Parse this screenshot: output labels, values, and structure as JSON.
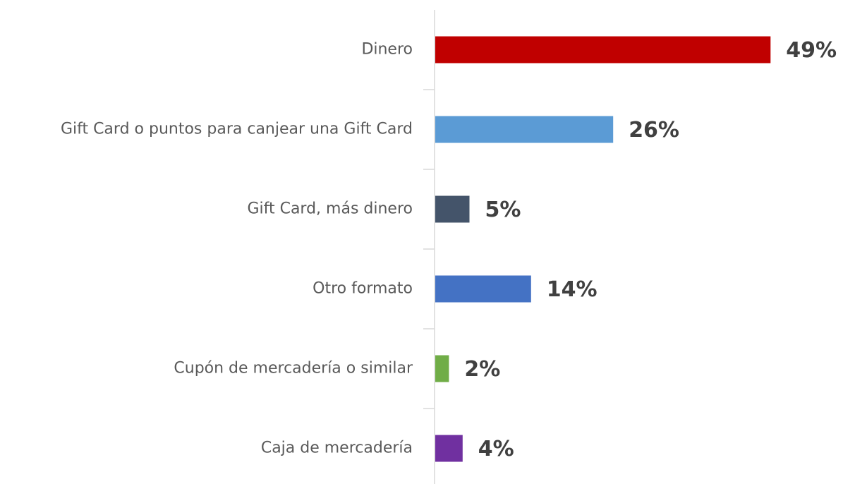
{
  "chart_data": {
    "type": "bar",
    "orientation": "horizontal",
    "categories": [
      "Dinero",
      "Gift Card o puntos para canjear una Gift Card",
      "Gift Card, más dinero",
      "Otro formato",
      "Cupón de mercadería o similar",
      "Caja de mercadería"
    ],
    "values": [
      49,
      26,
      5,
      14,
      2,
      4
    ],
    "value_labels": [
      "49%",
      "26%",
      "5%",
      "14%",
      "2%",
      "4%"
    ],
    "colors": [
      "#c00000",
      "#5b9bd5",
      "#44546a",
      "#4472c4",
      "#70ad47",
      "#7030a0"
    ]
  }
}
